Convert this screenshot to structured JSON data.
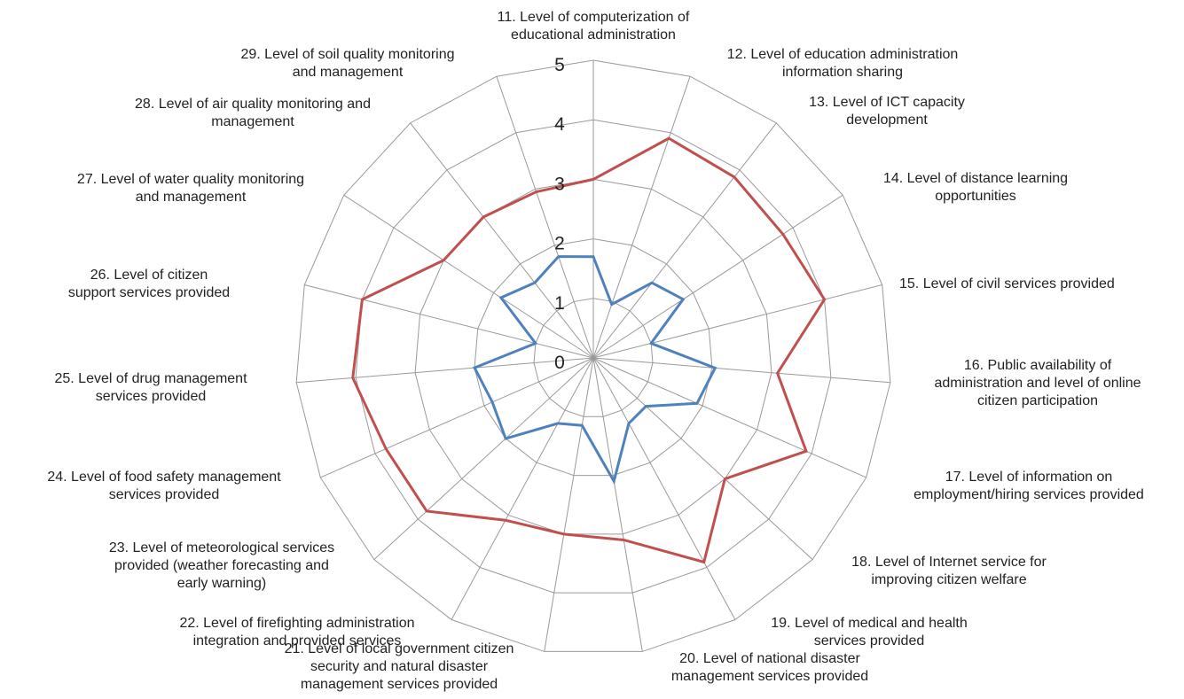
{
  "chart_data": {
    "type": "radar",
    "title": "",
    "r_ticks": [
      0,
      1,
      2,
      3,
      4,
      5
    ],
    "rlim": [
      0,
      5
    ],
    "grid": true,
    "legend": "none",
    "categories": [
      "11. Level of computerization of educational administration",
      "12. Level of education administration information sharing",
      "13. Level of ICT capacity development",
      "14. Level of distance learning opportunities",
      "15. Level of civil services provided",
      "16. Public availability of administration and level of online citizen participation",
      "17. Level of information on employment/hiring services provided",
      "18. Level of Internet service for improving citizen welfare",
      "19. Level of medical and health services provided",
      "20. Level of national disaster management services provided",
      "21. Level of local government citizen security and natural disaster management services provided",
      "22. Level of firefighting administration integration and provided services",
      "23. Level of meteorological services provided (weather forecasting and early warning)",
      "24. Level of food safety management services provided",
      "25. Level of drug management services provided",
      "26. Level of citizen support services provided",
      "27. Level of water quality monitoring and management",
      "28. Level of air quality monitoring and management",
      "29. Level of soil quality monitoring and management"
    ],
    "series": [
      {
        "color": "#c0504d",
        "values": [
          3.0,
          3.9,
          3.85,
          3.8,
          4.0,
          3.1,
          3.9,
          3.0,
          3.9,
          3.1,
          3.0,
          3.1,
          3.8,
          3.8,
          4.05,
          4.0,
          3.0,
          3.0,
          2.95
        ]
      },
      {
        "color": "#4f81bd",
        "values": [
          1.7,
          0.95,
          1.6,
          1.8,
          1.0,
          2.05,
          1.9,
          1.2,
          1.25,
          2.1,
          1.15,
          1.25,
          2.0,
          1.85,
          2.0,
          1.0,
          1.85,
          1.6,
          1.8
        ]
      }
    ]
  }
}
